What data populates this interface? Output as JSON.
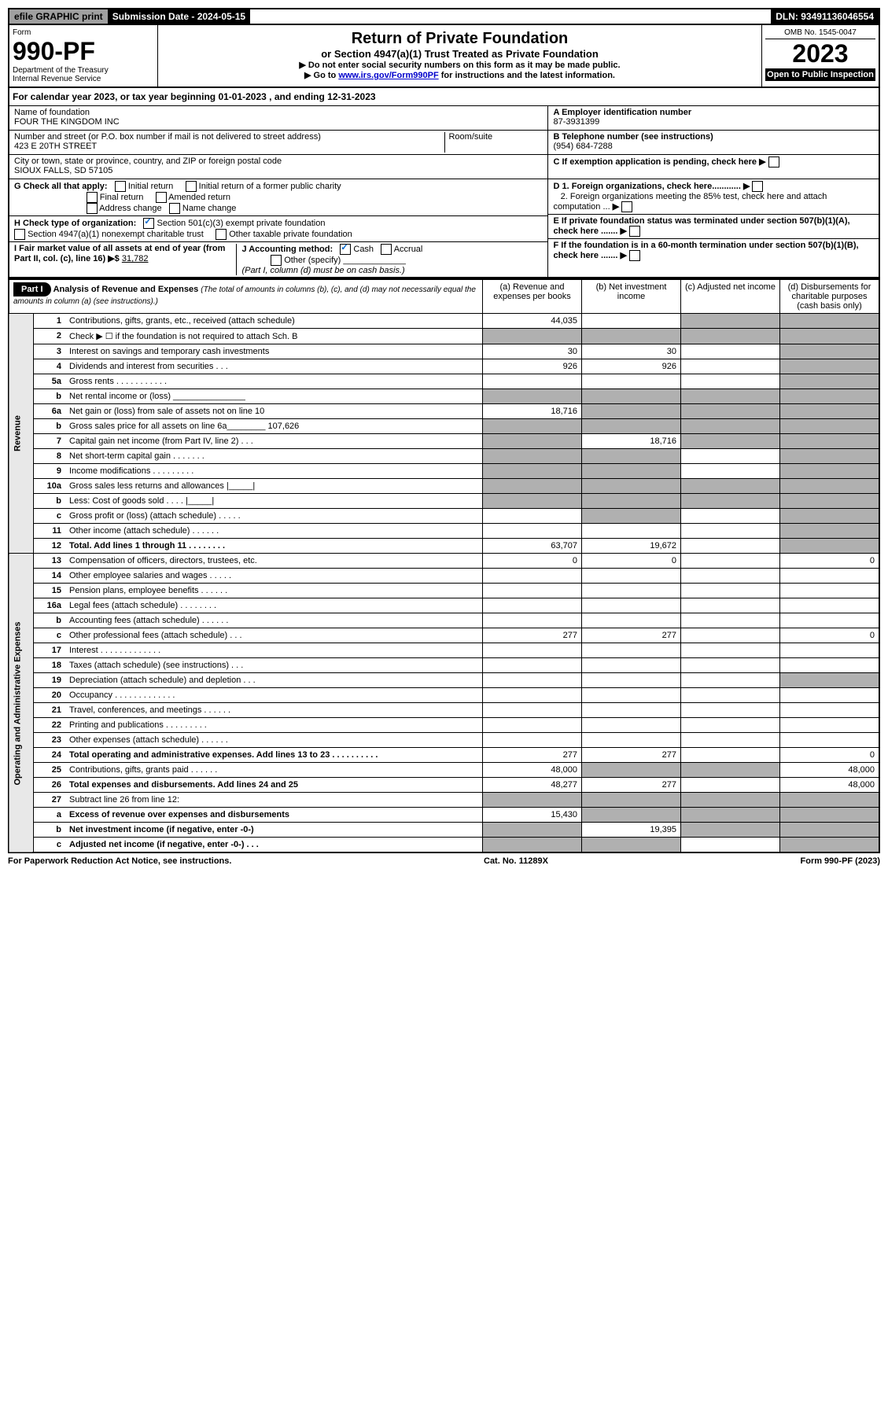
{
  "top": {
    "efile": "efile GRAPHIC print",
    "submission": "Submission Date - 2024-05-15",
    "dln": "DLN: 93491136046554"
  },
  "header": {
    "form_label": "Form",
    "form_number": "990-PF",
    "dept": "Department of the Treasury\nInternal Revenue Service",
    "title": "Return of Private Foundation",
    "subtitle": "or Section 4947(a)(1) Trust Treated as Private Foundation",
    "instr1": "▶ Do not enter social security numbers on this form as it may be made public.",
    "instr2_pre": "▶ Go to ",
    "instr2_link": "www.irs.gov/Form990PF",
    "instr2_post": " for instructions and the latest information.",
    "omb": "OMB No. 1545-0047",
    "year": "2023",
    "open": "Open to Public Inspection"
  },
  "cal_year": "For calendar year 2023, or tax year beginning 01-01-2023             , and ending 12-31-2023",
  "foundation": {
    "name_label": "Name of foundation",
    "name": "FOUR THE KINGDOM INC",
    "addr_label": "Number and street (or P.O. box number if mail is not delivered to street address)",
    "addr": "423 E 20TH STREET",
    "room_label": "Room/suite",
    "city_label": "City or town, state or province, country, and ZIP or foreign postal code",
    "city": "SIOUX FALLS, SD  57105",
    "ein_label": "A Employer identification number",
    "ein": "87-3931399",
    "phone_label": "B Telephone number (see instructions)",
    "phone": "(954) 684-7288",
    "c_label": "C If exemption application is pending, check here"
  },
  "checks": {
    "g_label": "G Check all that apply:",
    "g1": "Initial return",
    "g2": "Initial return of a former public charity",
    "g3": "Final return",
    "g4": "Amended return",
    "g5": "Address change",
    "g6": "Name change",
    "h_label": "H Check type of organization:",
    "h1": "Section 501(c)(3) exempt private foundation",
    "h2": "Section 4947(a)(1) nonexempt charitable trust",
    "h3": "Other taxable private foundation",
    "i_label": "I Fair market value of all assets at end of year (from Part II, col. (c), line 16)",
    "i_val": "31,782",
    "j_label": "J Accounting method:",
    "j1": "Cash",
    "j2": "Accrual",
    "j3": "Other (specify)",
    "j_note": "(Part I, column (d) must be on cash basis.)",
    "d1": "D 1. Foreign organizations, check here............",
    "d2": "2. Foreign organizations meeting the 85% test, check here and attach computation ...",
    "e_label": "E  If private foundation status was terminated under section 507(b)(1)(A), check here .......",
    "f_label": "F  If the foundation is in a 60-month termination under section 507(b)(1)(B), check here ......."
  },
  "part1": {
    "label": "Part I",
    "title": "Analysis of Revenue and Expenses",
    "note": "(The total of amounts in columns (b), (c), and (d) may not necessarily equal the amounts in column (a) (see instructions).)",
    "col_a": "(a)   Revenue and expenses per books",
    "col_b": "(b)   Net investment income",
    "col_c": "(c)   Adjusted net income",
    "col_d": "(d)   Disbursements for charitable purposes (cash basis only)"
  },
  "vert": {
    "revenue": "Revenue",
    "expenses": "Operating and Administrative Expenses"
  },
  "lines": [
    {
      "num": "1",
      "desc": "Contributions, gifts, grants, etc., received (attach schedule)",
      "a": "44,035",
      "b": "",
      "c": "",
      "d": "",
      "grey": [
        "c",
        "d"
      ]
    },
    {
      "num": "2",
      "desc": "Check ▶ ☐ if the foundation is not required to attach Sch. B",
      "a": "",
      "b": "",
      "c": "",
      "d": "",
      "grey": [
        "a",
        "b",
        "c",
        "d"
      ]
    },
    {
      "num": "3",
      "desc": "Interest on savings and temporary cash investments",
      "a": "30",
      "b": "30",
      "c": "",
      "d": "",
      "grey": [
        "d"
      ]
    },
    {
      "num": "4",
      "desc": "Dividends and interest from securities   .   .   .",
      "a": "926",
      "b": "926",
      "c": "",
      "d": "",
      "grey": [
        "d"
      ]
    },
    {
      "num": "5a",
      "desc": "Gross rents   .   .   .   .   .   .   .   .   .   .   .",
      "a": "",
      "b": "",
      "c": "",
      "d": "",
      "grey": [
        "d"
      ]
    },
    {
      "num": "b",
      "desc": "Net rental income or (loss)  _______________",
      "a": "",
      "b": "",
      "c": "",
      "d": "",
      "grey": [
        "a",
        "b",
        "c",
        "d"
      ]
    },
    {
      "num": "6a",
      "desc": "Net gain or (loss) from sale of assets not on line 10",
      "a": "18,716",
      "b": "",
      "c": "",
      "d": "",
      "grey": [
        "b",
        "c",
        "d"
      ]
    },
    {
      "num": "b",
      "desc": "Gross sales price for all assets on line 6a________  107,626",
      "a": "",
      "b": "",
      "c": "",
      "d": "",
      "grey": [
        "a",
        "b",
        "c",
        "d"
      ]
    },
    {
      "num": "7",
      "desc": "Capital gain net income (from Part IV, line 2)   .   .   .",
      "a": "",
      "b": "18,716",
      "c": "",
      "d": "",
      "grey": [
        "a",
        "c",
        "d"
      ]
    },
    {
      "num": "8",
      "desc": "Net short-term capital gain   .   .   .   .   .   .   .",
      "a": "",
      "b": "",
      "c": "",
      "d": "",
      "grey": [
        "a",
        "b",
        "d"
      ]
    },
    {
      "num": "9",
      "desc": "Income modifications  .   .   .   .   .   .   .   .   .",
      "a": "",
      "b": "",
      "c": "",
      "d": "",
      "grey": [
        "a",
        "b",
        "d"
      ]
    },
    {
      "num": "10a",
      "desc": "Gross sales less returns and allowances  |_____|",
      "a": "",
      "b": "",
      "c": "",
      "d": "",
      "grey": [
        "a",
        "b",
        "c",
        "d"
      ]
    },
    {
      "num": "b",
      "desc": "Less: Cost of goods sold   .   .   .   .   |_____|",
      "a": "",
      "b": "",
      "c": "",
      "d": "",
      "grey": [
        "a",
        "b",
        "c",
        "d"
      ]
    },
    {
      "num": "c",
      "desc": "Gross profit or (loss) (attach schedule)   .   .   .   .   .",
      "a": "",
      "b": "",
      "c": "",
      "d": "",
      "grey": [
        "b",
        "d"
      ]
    },
    {
      "num": "11",
      "desc": "Other income (attach schedule)   .   .   .   .   .   .",
      "a": "",
      "b": "",
      "c": "",
      "d": "",
      "grey": [
        "d"
      ]
    },
    {
      "num": "12",
      "desc": "Total. Add lines 1 through 11   .   .   .   .   .   .   .   .",
      "bold": true,
      "a": "63,707",
      "b": "19,672",
      "c": "",
      "d": "",
      "grey": [
        "d"
      ]
    },
    {
      "num": "13",
      "desc": "Compensation of officers, directors, trustees, etc.",
      "a": "0",
      "b": "0",
      "c": "",
      "d": "0",
      "grey": []
    },
    {
      "num": "14",
      "desc": "Other employee salaries and wages   .   .   .   .   .",
      "a": "",
      "b": "",
      "c": "",
      "d": "",
      "grey": []
    },
    {
      "num": "15",
      "desc": "Pension plans, employee benefits   .   .   .   .   .   .",
      "a": "",
      "b": "",
      "c": "",
      "d": "",
      "grey": []
    },
    {
      "num": "16a",
      "desc": "Legal fees (attach schedule)  .   .   .   .   .   .   .   .",
      "a": "",
      "b": "",
      "c": "",
      "d": "",
      "grey": []
    },
    {
      "num": "b",
      "desc": "Accounting fees (attach schedule)  .   .   .   .   .   .",
      "a": "",
      "b": "",
      "c": "",
      "d": "",
      "grey": []
    },
    {
      "num": "c",
      "desc": "Other professional fees (attach schedule)   .   .   .",
      "a": "277",
      "b": "277",
      "c": "",
      "d": "0",
      "grey": []
    },
    {
      "num": "17",
      "desc": "Interest  .   .   .   .   .   .   .   .   .   .   .   .   .",
      "a": "",
      "b": "",
      "c": "",
      "d": "",
      "grey": []
    },
    {
      "num": "18",
      "desc": "Taxes (attach schedule) (see instructions)   .   .   .",
      "a": "",
      "b": "",
      "c": "",
      "d": "",
      "grey": []
    },
    {
      "num": "19",
      "desc": "Depreciation (attach schedule) and depletion   .   .   .",
      "a": "",
      "b": "",
      "c": "",
      "d": "",
      "grey": [
        "d"
      ]
    },
    {
      "num": "20",
      "desc": "Occupancy  .   .   .   .   .   .   .   .   .   .   .   .   .",
      "a": "",
      "b": "",
      "c": "",
      "d": "",
      "grey": []
    },
    {
      "num": "21",
      "desc": "Travel, conferences, and meetings  .   .   .   .   .   .",
      "a": "",
      "b": "",
      "c": "",
      "d": "",
      "grey": []
    },
    {
      "num": "22",
      "desc": "Printing and publications  .   .   .   .   .   .   .   .   .",
      "a": "",
      "b": "",
      "c": "",
      "d": "",
      "grey": []
    },
    {
      "num": "23",
      "desc": "Other expenses (attach schedule)  .   .   .   .   .   .",
      "a": "",
      "b": "",
      "c": "",
      "d": "",
      "grey": []
    },
    {
      "num": "24",
      "desc": "Total operating and administrative expenses. Add lines 13 to 23   .   .   .   .   .   .   .   .   .   .",
      "bold": true,
      "a": "277",
      "b": "277",
      "c": "",
      "d": "0",
      "grey": []
    },
    {
      "num": "25",
      "desc": "Contributions, gifts, grants paid   .   .   .   .   .   .",
      "a": "48,000",
      "b": "",
      "c": "",
      "d": "48,000",
      "grey": [
        "b",
        "c"
      ]
    },
    {
      "num": "26",
      "desc": "Total expenses and disbursements. Add lines 24 and 25",
      "bold": true,
      "a": "48,277",
      "b": "277",
      "c": "",
      "d": "48,000",
      "grey": []
    },
    {
      "num": "27",
      "desc": "Subtract line 26 from line 12:",
      "a": "",
      "b": "",
      "c": "",
      "d": "",
      "grey": [
        "a",
        "b",
        "c",
        "d"
      ]
    },
    {
      "num": "a",
      "desc": "Excess of revenue over expenses and disbursements",
      "bold": true,
      "a": "15,430",
      "b": "",
      "c": "",
      "d": "",
      "grey": [
        "b",
        "c",
        "d"
      ]
    },
    {
      "num": "b",
      "desc": "Net investment income (if negative, enter -0-)",
      "bold": true,
      "a": "",
      "b": "19,395",
      "c": "",
      "d": "",
      "grey": [
        "a",
        "c",
        "d"
      ]
    },
    {
      "num": "c",
      "desc": "Adjusted net income (if negative, enter -0-)   .   .   .",
      "bold": true,
      "a": "",
      "b": "",
      "c": "",
      "d": "",
      "grey": [
        "a",
        "b",
        "d"
      ]
    }
  ],
  "footer": {
    "left": "For Paperwork Reduction Act Notice, see instructions.",
    "mid": "Cat. No. 11289X",
    "right": "Form 990-PF (2023)"
  },
  "colors": {
    "black": "#000000",
    "grey_bg": "#b0b0b0",
    "light_grey": "#e8e8e8",
    "link_blue": "#0000cc",
    "check_blue": "#0066cc"
  }
}
